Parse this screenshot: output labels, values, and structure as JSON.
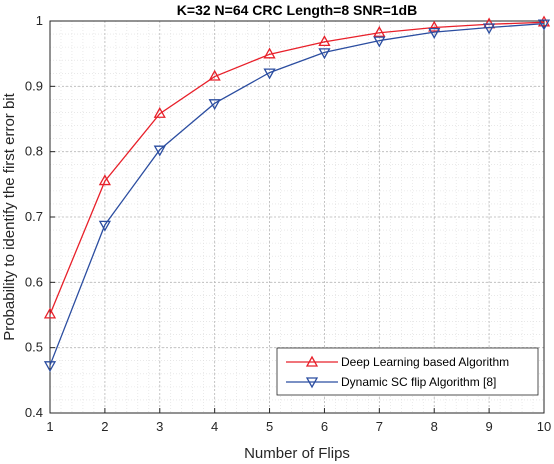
{
  "chart_data": {
    "type": "line",
    "title": "K=32 N=64 CRC Length=8 SNR=1dB",
    "xlabel": "Number of Flips",
    "ylabel": "Probability to identify the  first error bit",
    "x": [
      1,
      2,
      3,
      4,
      5,
      6,
      7,
      8,
      9,
      10
    ],
    "xlim": [
      1,
      10
    ],
    "ylim": [
      0.4,
      1
    ],
    "xticks": [
      "1",
      "2",
      "3",
      "4",
      "5",
      "6",
      "7",
      "8",
      "9",
      "10"
    ],
    "yticks": [
      "0.4",
      "0.5",
      "0.6",
      "0.7",
      "0.8",
      "0.9",
      "1"
    ],
    "grid": true,
    "legend_position": "bottom-right",
    "series": [
      {
        "name": "Deep Learning based Algorithm",
        "color": "#e8202a",
        "marker": "triangle-up",
        "values": [
          0.551,
          0.755,
          0.858,
          0.915,
          0.949,
          0.968,
          0.982,
          0.99,
          0.995,
          0.998
        ]
      },
      {
        "name": "Dynamic SC flip Algorithm [8]",
        "color": "#2b4da0",
        "marker": "triangle-down",
        "values": [
          0.473,
          0.688,
          0.803,
          0.874,
          0.921,
          0.952,
          0.97,
          0.983,
          0.99,
          0.996
        ]
      }
    ]
  }
}
